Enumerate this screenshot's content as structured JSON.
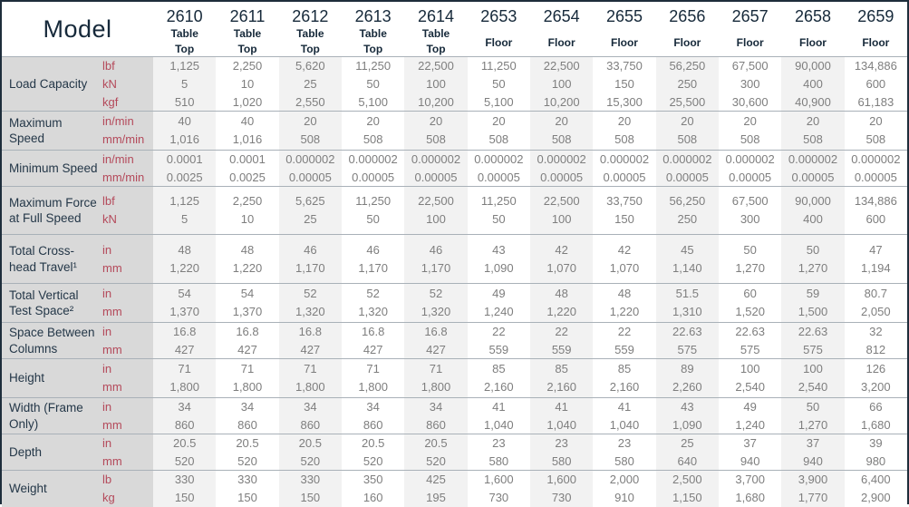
{
  "colors": {
    "accent_red": "#b4495a",
    "label_navy": "#243748",
    "header_navy": "#16293a",
    "value_gray": "#7e7e7e",
    "label_column_bg": "#d9d9d9",
    "stripe_bg": "#f2f2f2",
    "outer_border": "#1e2d3b",
    "row_separator": "#a9b1b8"
  },
  "table": {
    "model_header": "Model",
    "columns": [
      {
        "model": "2610",
        "type": "Table\nTop"
      },
      {
        "model": "2611",
        "type": "Table\nTop"
      },
      {
        "model": "2612",
        "type": "Table\nTop"
      },
      {
        "model": "2613",
        "type": "Table\nTop"
      },
      {
        "model": "2614",
        "type": "Table\nTop"
      },
      {
        "model": "2653",
        "type": "Floor"
      },
      {
        "model": "2654",
        "type": "Floor"
      },
      {
        "model": "2655",
        "type": "Floor"
      },
      {
        "model": "2656",
        "type": "Floor"
      },
      {
        "model": "2657",
        "type": "Floor"
      },
      {
        "model": "2658",
        "type": "Floor"
      },
      {
        "model": "2659",
        "type": "Floor"
      }
    ],
    "rows": [
      {
        "label": "Load Capacity",
        "units": [
          "lbf",
          "kN",
          "kgf"
        ],
        "values": [
          [
            "1,125",
            "5",
            "510"
          ],
          [
            "2,250",
            "10",
            "1,020"
          ],
          [
            "5,620",
            "25",
            "2,550"
          ],
          [
            "11,250",
            "50",
            "5,100"
          ],
          [
            "22,500",
            "100",
            "10,200"
          ],
          [
            "11,250",
            "50",
            "5,100"
          ],
          [
            "22,500",
            "100",
            "10,200"
          ],
          [
            "33,750",
            "150",
            "15,300"
          ],
          [
            "56,250",
            "250",
            "25,500"
          ],
          [
            "67,500",
            "300",
            "30,600"
          ],
          [
            "90,000",
            "400",
            "40,900"
          ],
          [
            "134,886",
            "600",
            "61,183"
          ]
        ]
      },
      {
        "label": "Maximum Speed",
        "units": [
          "in/min",
          "mm/min"
        ],
        "values": [
          [
            "40",
            "1,016"
          ],
          [
            "40",
            "1,016"
          ],
          [
            "20",
            "508"
          ],
          [
            "20",
            "508"
          ],
          [
            "20",
            "508"
          ],
          [
            "20",
            "508"
          ],
          [
            "20",
            "508"
          ],
          [
            "20",
            "508"
          ],
          [
            "20",
            "508"
          ],
          [
            "20",
            "508"
          ],
          [
            "20",
            "508"
          ],
          [
            "20",
            "508"
          ]
        ]
      },
      {
        "label": "Minimum Speed",
        "units": [
          "in/min",
          "mm/min"
        ],
        "values": [
          [
            "0.0001",
            "0.0025"
          ],
          [
            "0.0001",
            "0.0025"
          ],
          [
            "0.000002",
            "0.00005"
          ],
          [
            "0.000002",
            "0.00005"
          ],
          [
            "0.000002",
            "0.00005"
          ],
          [
            "0.000002",
            "0.00005"
          ],
          [
            "0.000002",
            "0.00005"
          ],
          [
            "0.000002",
            "0.00005"
          ],
          [
            "0.000002",
            "0.00005"
          ],
          [
            "0.000002",
            "0.00005"
          ],
          [
            "0.000002",
            "0.00005"
          ],
          [
            "0.000002",
            "0.00005"
          ]
        ]
      },
      {
        "label": "Maximum Force at Full Speed",
        "units": [
          "lbf",
          "kN"
        ],
        "values": [
          [
            "1,125",
            "5"
          ],
          [
            "2,250",
            "10"
          ],
          [
            "5,625",
            "25"
          ],
          [
            "11,250",
            "50"
          ],
          [
            "22,500",
            "100"
          ],
          [
            "11,250",
            "50"
          ],
          [
            "22,500",
            "100"
          ],
          [
            "33,750",
            "150"
          ],
          [
            "56,250",
            "250"
          ],
          [
            "67,500",
            "300"
          ],
          [
            "90,000",
            "400"
          ],
          [
            "134,886",
            "600"
          ]
        ]
      },
      {
        "label": "Total Cross-head Travel¹",
        "units": [
          "in",
          "mm"
        ],
        "values": [
          [
            "48",
            "1,220"
          ],
          [
            "48",
            "1,220"
          ],
          [
            "46",
            "1,170"
          ],
          [
            "46",
            "1,170"
          ],
          [
            "46",
            "1,170"
          ],
          [
            "43",
            "1,090"
          ],
          [
            "42",
            "1,070"
          ],
          [
            "42",
            "1,070"
          ],
          [
            "45",
            "1,140"
          ],
          [
            "50",
            "1,270"
          ],
          [
            "50",
            "1,270"
          ],
          [
            "47",
            "1,194"
          ]
        ]
      },
      {
        "label": "Total Vertical Test Space²",
        "units": [
          "in",
          "mm"
        ],
        "values": [
          [
            "54",
            "1,370"
          ],
          [
            "54",
            "1,370"
          ],
          [
            "52",
            "1,320"
          ],
          [
            "52",
            "1,320"
          ],
          [
            "52",
            "1,320"
          ],
          [
            "49",
            "1,240"
          ],
          [
            "48",
            "1,220"
          ],
          [
            "48",
            "1,220"
          ],
          [
            "51.5",
            "1,310"
          ],
          [
            "60",
            "1,520"
          ],
          [
            "59",
            "1,500"
          ],
          [
            "80.7",
            "2,050"
          ]
        ]
      },
      {
        "label": "Space Between Columns",
        "units": [
          "in",
          "mm"
        ],
        "values": [
          [
            "16.8",
            "427"
          ],
          [
            "16.8",
            "427"
          ],
          [
            "16.8",
            "427"
          ],
          [
            "16.8",
            "427"
          ],
          [
            "16.8",
            "427"
          ],
          [
            "22",
            "559"
          ],
          [
            "22",
            "559"
          ],
          [
            "22",
            "559"
          ],
          [
            "22.63",
            "575"
          ],
          [
            "22.63",
            "575"
          ],
          [
            "22.63",
            "575"
          ],
          [
            "32",
            "812"
          ]
        ]
      },
      {
        "label": "Height",
        "units": [
          "in",
          "mm"
        ],
        "values": [
          [
            "71",
            "1,800"
          ],
          [
            "71",
            "1,800"
          ],
          [
            "71",
            "1,800"
          ],
          [
            "71",
            "1,800"
          ],
          [
            "71",
            "1,800"
          ],
          [
            "85",
            "2,160"
          ],
          [
            "85",
            "2,160"
          ],
          [
            "85",
            "2,160"
          ],
          [
            "89",
            "2,260"
          ],
          [
            "100",
            "2,540"
          ],
          [
            "100",
            "2,540"
          ],
          [
            "126",
            "3,200"
          ]
        ]
      },
      {
        "label": "Width (Frame Only)",
        "units": [
          "in",
          "mm"
        ],
        "values": [
          [
            "34",
            "860"
          ],
          [
            "34",
            "860"
          ],
          [
            "34",
            "860"
          ],
          [
            "34",
            "860"
          ],
          [
            "34",
            "860"
          ],
          [
            "41",
            "1,040"
          ],
          [
            "41",
            "1,040"
          ],
          [
            "41",
            "1,040"
          ],
          [
            "43",
            "1,090"
          ],
          [
            "49",
            "1,240"
          ],
          [
            "50",
            "1,270"
          ],
          [
            "66",
            "1,680"
          ]
        ]
      },
      {
        "label": "Depth",
        "units": [
          "in",
          "mm"
        ],
        "values": [
          [
            "20.5",
            "520"
          ],
          [
            "20.5",
            "520"
          ],
          [
            "20.5",
            "520"
          ],
          [
            "20.5",
            "520"
          ],
          [
            "20.5",
            "520"
          ],
          [
            "23",
            "580"
          ],
          [
            "23",
            "580"
          ],
          [
            "23",
            "580"
          ],
          [
            "25",
            "640"
          ],
          [
            "37",
            "940"
          ],
          [
            "37",
            "940"
          ],
          [
            "39",
            "980"
          ]
        ]
      },
      {
        "label": "Weight",
        "units": [
          "lb",
          "kg"
        ],
        "values": [
          [
            "330",
            "150"
          ],
          [
            "330",
            "150"
          ],
          [
            "330",
            "150"
          ],
          [
            "350",
            "160"
          ],
          [
            "425",
            "195"
          ],
          [
            "1,600",
            "730"
          ],
          [
            "1,600",
            "730"
          ],
          [
            "2,000",
            "910"
          ],
          [
            "2,500",
            "1,150"
          ],
          [
            "3,700",
            "1,680"
          ],
          [
            "3,900",
            "1,770"
          ],
          [
            "6,400",
            "2,900"
          ]
        ]
      }
    ]
  }
}
